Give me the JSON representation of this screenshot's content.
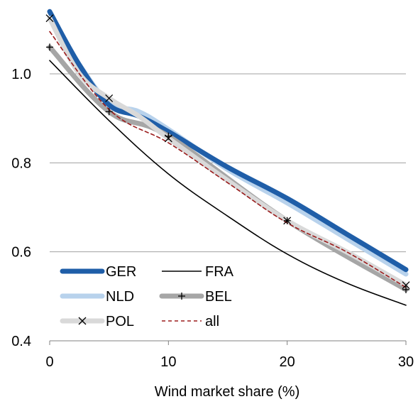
{
  "chart_data": {
    "type": "line",
    "xlabel": "Wind market share (%)",
    "ylabel": "",
    "xlim": [
      0,
      30
    ],
    "ylim": [
      0.4,
      1.15
    ],
    "xticks": [
      "0",
      "10",
      "20",
      "30"
    ],
    "yticks": [
      "0.4",
      "0.6",
      "0.8",
      "1.0"
    ],
    "grid": "horizontal",
    "legend_position": "bottom-left",
    "series": [
      {
        "name": "GER",
        "color": "#1f5ea8",
        "style": "thick",
        "marker": "none",
        "x": [
          0,
          2.5,
          5,
          7.5,
          10,
          15,
          20,
          25,
          30
        ],
        "y": [
          1.14,
          1.02,
          0.93,
          0.905,
          0.87,
          0.79,
          0.72,
          0.64,
          0.56
        ]
      },
      {
        "name": "FRA",
        "color": "#000000",
        "style": "thin",
        "marker": "none",
        "x": [
          0,
          5,
          10,
          15,
          20,
          25,
          30
        ],
        "y": [
          1.03,
          0.895,
          0.775,
          0.68,
          0.595,
          0.53,
          0.48
        ]
      },
      {
        "name": "NLD",
        "color": "#b8d2ec",
        "style": "thick",
        "marker": "none",
        "x": [
          0,
          2.5,
          5,
          7.5,
          10,
          15,
          20,
          25,
          30
        ],
        "y": [
          1.125,
          1.02,
          0.935,
          0.915,
          0.875,
          0.785,
          0.71,
          0.63,
          0.55
        ]
      },
      {
        "name": "BEL",
        "color": "#a6a6a6",
        "style": "thick",
        "marker": "plus",
        "x": [
          0,
          5,
          10,
          20,
          30
        ],
        "y": [
          1.06,
          0.915,
          0.86,
          0.67,
          0.515
        ],
        "marker_x": [
          0,
          5,
          10,
          20,
          30
        ]
      },
      {
        "name": "POL",
        "color": "#d9d9d9",
        "style": "thick",
        "marker": "x",
        "x": [
          0,
          2.5,
          5,
          7.5,
          10,
          15,
          20,
          25,
          30
        ],
        "y": [
          1.125,
          1.0,
          0.945,
          0.905,
          0.855,
          0.76,
          0.67,
          0.6,
          0.525
        ],
        "marker_x": [
          0,
          5,
          10,
          20,
          30
        ]
      },
      {
        "name": "all",
        "color": "#9b1c1c",
        "style": "dashed",
        "marker": "none",
        "x": [
          0,
          5,
          10,
          15,
          20,
          25,
          30
        ],
        "y": [
          1.095,
          0.92,
          0.845,
          0.755,
          0.665,
          0.6,
          0.52
        ]
      }
    ]
  }
}
